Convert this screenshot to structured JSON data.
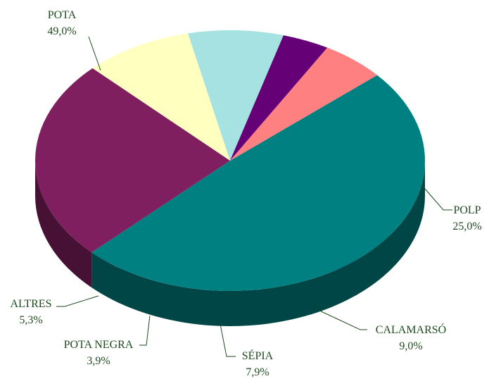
{
  "chart_data": {
    "type": "pie3d",
    "categories": [
      "POTA",
      "POLP",
      "CALAMARSÓ",
      "SÉPIA",
      "POTA NEGRA",
      "ALTRES"
    ],
    "values": [
      49.0,
      25.0,
      9.0,
      7.9,
      3.9,
      5.3
    ],
    "value_labels": [
      "49,0%",
      "25,0%",
      "9,0%",
      "7,9%",
      "3,9%",
      "5,3%"
    ],
    "colors": [
      "#008080",
      "#7f1f5f",
      "#ffffc0",
      "#a6e2e2",
      "#660077",
      "#ff8080"
    ]
  }
}
